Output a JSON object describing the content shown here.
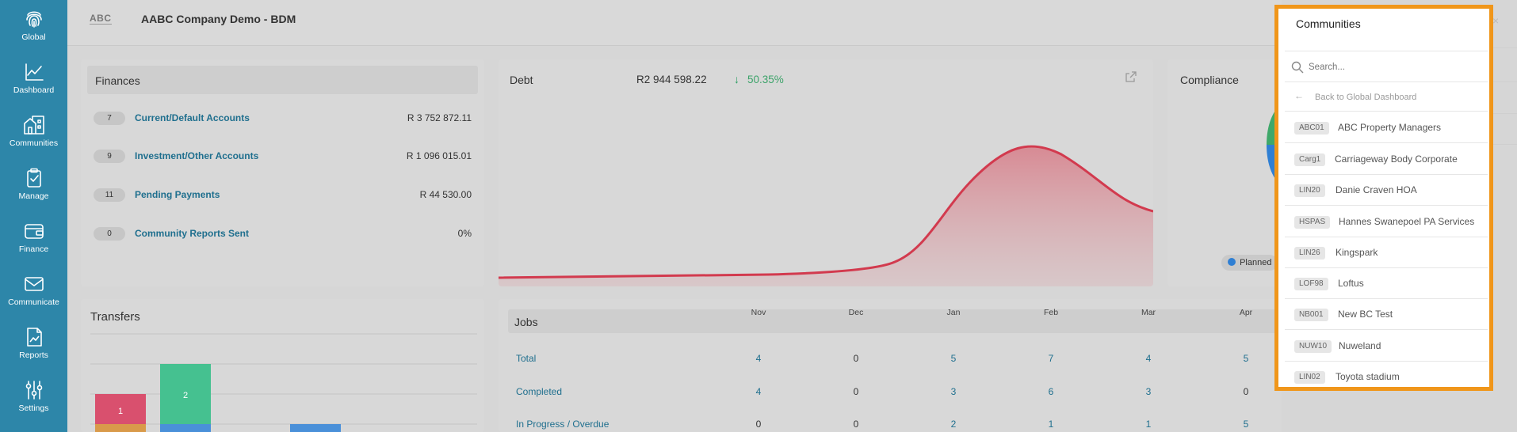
{
  "app": {
    "logo_text": "ABC",
    "company_name": "AABC Company Demo - BDM"
  },
  "sidebar": {
    "items": [
      {
        "label": "Global",
        "icon": "fingerprint-icon"
      },
      {
        "label": "Dashboard",
        "icon": "line-chart-icon"
      },
      {
        "label": "Communities",
        "icon": "buildings-icon"
      },
      {
        "label": "Manage",
        "icon": "clipboard-check-icon"
      },
      {
        "label": "Finance",
        "icon": "wallet-icon"
      },
      {
        "label": "Communicate",
        "icon": "envelope-icon"
      },
      {
        "label": "Reports",
        "icon": "report-chart-icon"
      },
      {
        "label": "Settings",
        "icon": "sliders-icon"
      }
    ]
  },
  "finances": {
    "title": "Finances",
    "rows": [
      {
        "count": "7",
        "label": "Current/Default Accounts",
        "value": "R 3 752 872.11"
      },
      {
        "count": "9",
        "label": "Investment/Other Accounts",
        "value": "R 1 096 015.01"
      },
      {
        "count": "11",
        "label": "Pending Payments",
        "value": "R 44 530.00"
      },
      {
        "count": "0",
        "label": "Community Reports Sent",
        "value": "0%"
      }
    ]
  },
  "debt": {
    "title": "Debt",
    "amount": "R2 944 598.22",
    "change_arrow": "↓",
    "change_pct": "50.35%",
    "line_color": "#d23a4e"
  },
  "compliance": {
    "title": "Compliance",
    "legend_label": "Planned"
  },
  "transfers": {
    "title": "Transfers",
    "bar_labels": [
      "1",
      "2"
    ],
    "colors": [
      "#d9506e",
      "#45c190",
      "#d99a4a",
      "#4a90d9"
    ]
  },
  "jobs": {
    "title": "Jobs",
    "months": [
      "Nov",
      "Dec",
      "Jan",
      "Feb",
      "Mar",
      "Apr"
    ],
    "rows": [
      {
        "label": "Total",
        "values": [
          "4",
          "0",
          "5",
          "7",
          "4",
          "5"
        ]
      },
      {
        "label": "Completed",
        "values": [
          "4",
          "0",
          "3",
          "6",
          "3",
          "0"
        ]
      },
      {
        "label": "In Progress / Overdue",
        "values": [
          "0",
          "0",
          "2",
          "1",
          "1",
          "5"
        ]
      }
    ]
  },
  "communities_panel": {
    "title": "Communities",
    "close_icon": "×",
    "search_placeholder": "Search...",
    "back_arrow": "←",
    "back_label": "Back to Global Dashboard",
    "highlight_color": "#f0961a",
    "items": [
      {
        "code": "ABC01",
        "name": "ABC Property Managers"
      },
      {
        "code": "Carg1",
        "name": "Carriageway Body Corporate"
      },
      {
        "code": "LIN20",
        "name": "Danie Craven HOA"
      },
      {
        "code": "HSPAS",
        "name": "Hannes Swanepoel PA Services"
      },
      {
        "code": "LIN26",
        "name": "Kingspark"
      },
      {
        "code": "LOF98",
        "name": "Loftus"
      },
      {
        "code": "NB001",
        "name": "New BC Test"
      },
      {
        "code": "NUW10",
        "name": "Nuweland"
      },
      {
        "code": "LIN02",
        "name": "Toyota stadium"
      }
    ]
  }
}
